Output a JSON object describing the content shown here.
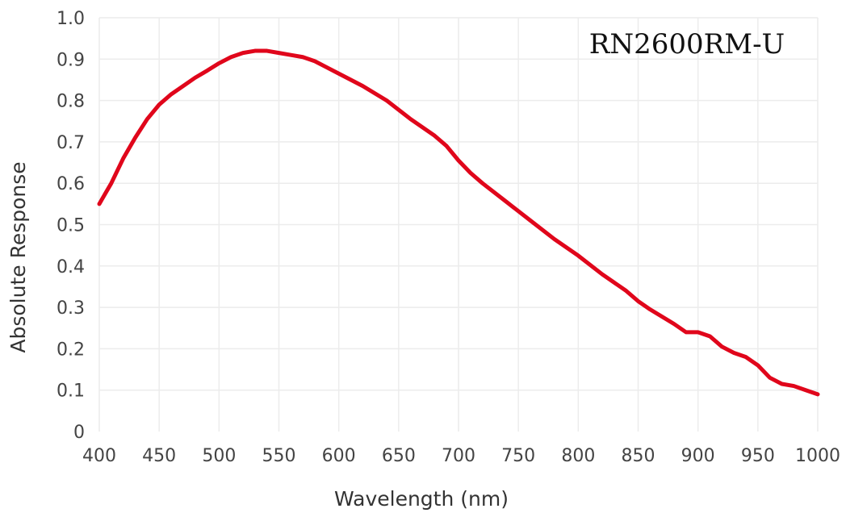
{
  "chart_data": {
    "type": "line",
    "title": "",
    "annotation": "RN2600RM-U",
    "xlabel": "Wavelength (nm)",
    "ylabel": "Absolute Response",
    "xlim": [
      400,
      1000
    ],
    "ylim": [
      0,
      1.0
    ],
    "x_ticks": [
      "400",
      "450",
      "500",
      "550",
      "600",
      "650",
      "700",
      "750",
      "800",
      "850",
      "900",
      "950",
      "1000"
    ],
    "y_ticks": [
      "0",
      "0.1",
      "0.2",
      "0.3",
      "0.4",
      "0.5",
      "0.6",
      "0.7",
      "0.8",
      "0.9",
      "1.0"
    ],
    "grid": true,
    "series": [
      {
        "color": "#e0061b",
        "x": [
          400,
          410,
          420,
          430,
          440,
          450,
          460,
          470,
          480,
          490,
          500,
          510,
          520,
          530,
          540,
          550,
          560,
          570,
          580,
          590,
          600,
          620,
          640,
          660,
          680,
          690,
          700,
          710,
          720,
          740,
          760,
          780,
          800,
          820,
          840,
          850,
          860,
          880,
          890,
          900,
          910,
          920,
          930,
          940,
          950,
          960,
          970,
          980,
          990,
          1000
        ],
        "y": [
          0.55,
          0.6,
          0.66,
          0.71,
          0.755,
          0.79,
          0.815,
          0.835,
          0.855,
          0.872,
          0.89,
          0.905,
          0.915,
          0.92,
          0.92,
          0.915,
          0.91,
          0.905,
          0.895,
          0.88,
          0.865,
          0.835,
          0.8,
          0.755,
          0.715,
          0.69,
          0.655,
          0.625,
          0.6,
          0.555,
          0.51,
          0.465,
          0.425,
          0.38,
          0.34,
          0.315,
          0.295,
          0.26,
          0.24,
          0.24,
          0.23,
          0.205,
          0.19,
          0.18,
          0.16,
          0.13,
          0.115,
          0.11,
          0.1,
          0.09
        ]
      }
    ]
  }
}
